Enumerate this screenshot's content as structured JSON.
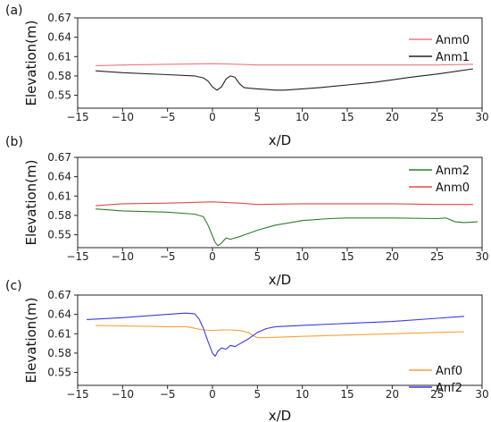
{
  "chart_data": [
    {
      "panel_label": "(a)",
      "type": "line",
      "xlabel": "x/D",
      "ylabel": "Elevation(m)",
      "xlim": [
        -15,
        30
      ],
      "ylim": [
        0.53,
        0.67
      ],
      "xticks": [
        -15,
        -10,
        -5,
        0,
        5,
        10,
        15,
        20,
        25,
        30
      ],
      "xtick_labels": [
        "−15",
        "−10",
        "−5",
        "0",
        "5",
        "10",
        "15",
        "20",
        "25",
        "30"
      ],
      "yticks": [
        0.55,
        0.58,
        0.61,
        0.64,
        0.67
      ],
      "ytick_labels": [
        "0.55",
        "0.58",
        "0.61",
        "0.64",
        "0.67"
      ],
      "legend_position": "top-right",
      "series": [
        {
          "name": "Anm0",
          "color": "#f07878",
          "x": [
            -13,
            -10,
            -5,
            0,
            3,
            5,
            10,
            15,
            20,
            25,
            29
          ],
          "y": [
            0.596,
            0.597,
            0.598,
            0.599,
            0.598,
            0.597,
            0.597,
            0.597,
            0.597,
            0.597,
            0.598
          ]
        },
        {
          "name": "Anm1",
          "color": "#222222",
          "x": [
            -13,
            -10,
            -5,
            -2,
            -1,
            -0.5,
            0,
            0.5,
            1,
            1.5,
            2,
            2.5,
            3,
            3.5,
            4,
            5,
            6,
            7,
            8,
            10,
            12,
            15,
            18,
            20,
            22,
            25,
            27,
            29
          ],
          "y": [
            0.588,
            0.585,
            0.582,
            0.58,
            0.577,
            0.572,
            0.563,
            0.558,
            0.563,
            0.575,
            0.58,
            0.578,
            0.568,
            0.562,
            0.561,
            0.56,
            0.559,
            0.558,
            0.558,
            0.56,
            0.562,
            0.566,
            0.57,
            0.574,
            0.578,
            0.583,
            0.587,
            0.591
          ]
        }
      ]
    },
    {
      "panel_label": "(b)",
      "type": "line",
      "xlabel": "x/D",
      "ylabel": "Elevation(m)",
      "xlim": [
        -15,
        30
      ],
      "ylim": [
        0.53,
        0.67
      ],
      "xticks": [
        -15,
        -10,
        -5,
        0,
        5,
        10,
        15,
        20,
        25,
        30
      ],
      "xtick_labels": [
        "−15",
        "−10",
        "−5",
        "0",
        "5",
        "10",
        "15",
        "20",
        "25",
        "30"
      ],
      "yticks": [
        0.55,
        0.58,
        0.61,
        0.64,
        0.67
      ],
      "ytick_labels": [
        "0.55",
        "0.58",
        "0.61",
        "0.64",
        "0.67"
      ],
      "legend_position": "top-right",
      "series": [
        {
          "name": "Anm2",
          "color": "#2e7d2e",
          "x": [
            -13,
            -10,
            -5,
            -2,
            -1,
            -0.5,
            0,
            0.3,
            0.6,
            1,
            1.5,
            2,
            3,
            4,
            5,
            7,
            10,
            13,
            15,
            20,
            25,
            26,
            27,
            28,
            29.5
          ],
          "y": [
            0.59,
            0.587,
            0.585,
            0.582,
            0.578,
            0.565,
            0.548,
            0.538,
            0.533,
            0.537,
            0.545,
            0.543,
            0.547,
            0.552,
            0.557,
            0.565,
            0.572,
            0.575,
            0.576,
            0.576,
            0.575,
            0.576,
            0.57,
            0.569,
            0.57
          ]
        },
        {
          "name": "Anm0",
          "color": "#e84848",
          "x": [
            -13,
            -10,
            -5,
            0,
            3,
            5,
            10,
            15,
            20,
            25,
            29
          ],
          "y": [
            0.595,
            0.598,
            0.599,
            0.601,
            0.599,
            0.597,
            0.598,
            0.598,
            0.598,
            0.597,
            0.597
          ]
        }
      ]
    },
    {
      "panel_label": "(c)",
      "type": "line",
      "xlabel": "x/D",
      "ylabel": "Elevation(m)",
      "xlim": [
        -15,
        30
      ],
      "ylim": [
        0.53,
        0.67
      ],
      "xticks": [
        -15,
        -10,
        -5,
        0,
        5,
        10,
        15,
        20,
        25,
        30
      ],
      "xtick_labels": [
        "−15",
        "−10",
        "−5",
        "0",
        "5",
        "10",
        "15",
        "20",
        "25",
        "30"
      ],
      "yticks": [
        0.55,
        0.58,
        0.61,
        0.64,
        0.67
      ],
      "ytick_labels": [
        "0.55",
        "0.58",
        "0.61",
        "0.64",
        "0.67"
      ],
      "legend_position": "bottom-right",
      "series": [
        {
          "name": "Anf0",
          "color": "#f5a23a",
          "x": [
            -13,
            -10,
            -5,
            -3,
            -2.5,
            -1.5,
            -1,
            0,
            1,
            2,
            3,
            4,
            4.5,
            5,
            6,
            8,
            10,
            15,
            20,
            25,
            28
          ],
          "y": [
            0.623,
            0.622,
            0.621,
            0.621,
            0.62,
            0.617,
            0.616,
            0.615,
            0.616,
            0.616,
            0.615,
            0.612,
            0.607,
            0.604,
            0.604,
            0.605,
            0.606,
            0.608,
            0.61,
            0.612,
            0.613
          ]
        },
        {
          "name": "Anf2",
          "color": "#3a3ae6",
          "x": [
            -14,
            -10,
            -5,
            -3,
            -2,
            -1.5,
            -1,
            -0.5,
            0,
            0.3,
            0.6,
            1,
            1.5,
            2,
            2.5,
            3,
            3.5,
            4,
            5,
            6,
            7,
            10,
            15,
            20,
            25,
            28
          ],
          "y": [
            0.632,
            0.635,
            0.64,
            0.642,
            0.641,
            0.633,
            0.618,
            0.598,
            0.58,
            0.575,
            0.583,
            0.588,
            0.586,
            0.592,
            0.59,
            0.594,
            0.598,
            0.602,
            0.612,
            0.618,
            0.621,
            0.623,
            0.626,
            0.629,
            0.634,
            0.637
          ]
        }
      ]
    }
  ]
}
